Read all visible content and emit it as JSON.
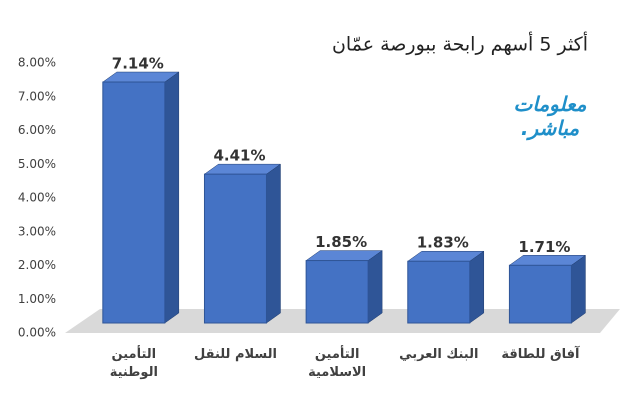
{
  "chart_data": {
    "type": "bar3d",
    "title": "أكثر 5 أسهم رابحة ببورصة عمّان",
    "categories": [
      "التأمين الوطنية",
      "السلام للنقل",
      "التأمين الاسلامية",
      "البنك العربي",
      "آفاق للطاقة"
    ],
    "values": [
      7.14,
      4.41,
      1.85,
      1.83,
      1.71
    ],
    "value_labels": [
      "7.14%",
      "4.41%",
      "1.85%",
      "1.83%",
      "1.71%"
    ],
    "color": "#4472c4",
    "ylim": [
      0,
      8
    ],
    "yticks": [
      {
        "value": 0,
        "label": "0.00%"
      },
      {
        "value": 1,
        "label": "1.00%"
      },
      {
        "value": 2,
        "label": "2.00%"
      },
      {
        "value": 3,
        "label": "3.00%"
      },
      {
        "value": 4,
        "label": "4.00%"
      },
      {
        "value": 5,
        "label": "5.00%"
      },
      {
        "value": 6,
        "label": "6.00%"
      },
      {
        "value": 7,
        "label": "7.00%"
      },
      {
        "value": 8,
        "label": "8.00%"
      }
    ],
    "grid": false
  },
  "logo": [
    "معلومات",
    "مباشر."
  ]
}
